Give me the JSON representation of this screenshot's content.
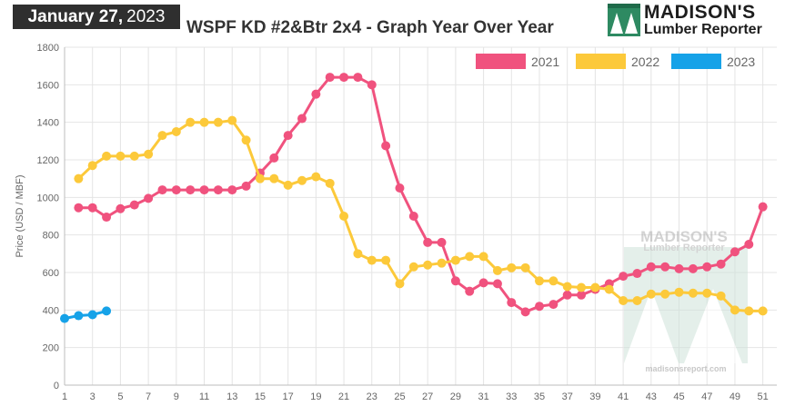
{
  "header": {
    "date_bold": "January 27,",
    "date_year": "2023",
    "title": "WSPF KD #2&Btr 2x4 - Graph Year Over Year"
  },
  "logo": {
    "line1": "MADISON'S",
    "line2": "Lumber Reporter"
  },
  "watermark": {
    "line1": "MADISON'S",
    "line2": "Lumber Reporter",
    "url": "madisonsreport.com"
  },
  "chart_data": {
    "type": "line",
    "ylabel": "Price (USD / MBF)",
    "ylim": [
      0,
      1800
    ],
    "yticks": [
      0,
      200,
      400,
      600,
      800,
      1000,
      1200,
      1400,
      1600,
      1800
    ],
    "xlim": [
      1,
      52
    ],
    "xticks": [
      1,
      3,
      5,
      7,
      9,
      11,
      13,
      15,
      17,
      19,
      21,
      23,
      25,
      27,
      29,
      31,
      33,
      35,
      37,
      39,
      41,
      43,
      45,
      47,
      49,
      51
    ],
    "grid": true,
    "legend_position": "top-right",
    "series": [
      {
        "name": "2021",
        "color": "#f0527e",
        "x": [
          2,
          3,
          4,
          5,
          6,
          7,
          8,
          9,
          10,
          11,
          12,
          13,
          14,
          15,
          16,
          17,
          18,
          19,
          20,
          21,
          22,
          23,
          24,
          25,
          26,
          27,
          28,
          29,
          30,
          31,
          32,
          33,
          34,
          35,
          36,
          37,
          38,
          39,
          40,
          41,
          42,
          43,
          44,
          45,
          46,
          47,
          48,
          49,
          50,
          51
        ],
        "values": [
          945,
          945,
          895,
          940,
          960,
          995,
          1040,
          1040,
          1040,
          1040,
          1040,
          1040,
          1060,
          1130,
          1210,
          1330,
          1420,
          1550,
          1640,
          1640,
          1640,
          1600,
          1275,
          1050,
          900,
          760,
          760,
          555,
          500,
          545,
          540,
          440,
          390,
          420,
          430,
          480,
          480,
          510,
          540,
          580,
          595,
          630,
          630,
          620,
          620,
          630,
          645,
          710,
          750,
          950
        ]
      },
      {
        "name": "2022",
        "color": "#fcc93a",
        "x": [
          2,
          3,
          4,
          5,
          6,
          7,
          8,
          9,
          10,
          11,
          12,
          13,
          14,
          15,
          16,
          17,
          18,
          19,
          20,
          21,
          22,
          23,
          24,
          25,
          26,
          27,
          28,
          29,
          30,
          31,
          32,
          33,
          34,
          35,
          36,
          37,
          38,
          39,
          40,
          41,
          42,
          43,
          44,
          45,
          46,
          47,
          48,
          49,
          50,
          51
        ],
        "values": [
          1100,
          1170,
          1220,
          1220,
          1220,
          1230,
          1330,
          1350,
          1400,
          1400,
          1400,
          1410,
          1305,
          1100,
          1100,
          1065,
          1090,
          1110,
          1075,
          900,
          700,
          665,
          665,
          540,
          630,
          640,
          650,
          665,
          685,
          685,
          610,
          625,
          625,
          555,
          555,
          525,
          520,
          520,
          510,
          450,
          450,
          485,
          485,
          495,
          490,
          490,
          475,
          400,
          395,
          395
        ]
      },
      {
        "name": "2023",
        "color": "#16a2e8",
        "x": [
          1,
          2,
          3,
          4
        ],
        "values": [
          355,
          370,
          375,
          395
        ]
      }
    ]
  }
}
